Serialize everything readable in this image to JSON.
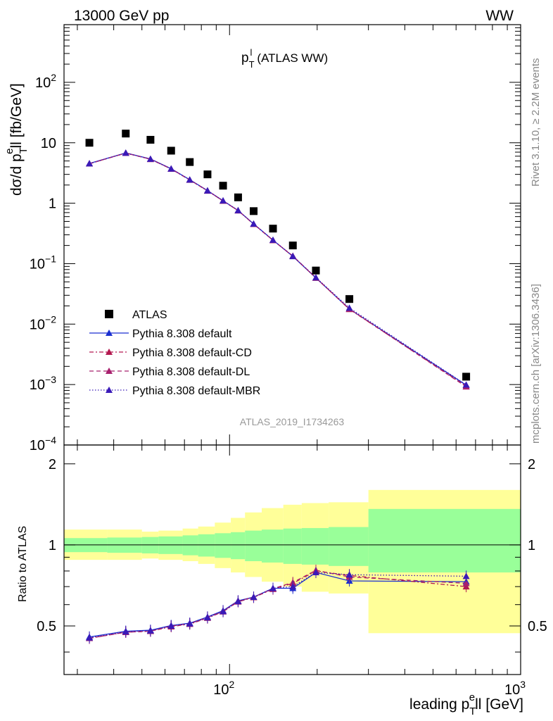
{
  "header": {
    "energy_label": "13000 GeV pp",
    "process_label": "WW"
  },
  "side_text": {
    "rivet": "Rivet 3.1.10, ≥ 2.2M events",
    "source": "mcplots.cern.ch [arXiv:1306.3436]"
  },
  "analysis_id": "ATLAS_2019_I1734263",
  "colors": {
    "data": "#000000",
    "default": "#1a2fd0",
    "cd": "#b3184f",
    "dl": "#a8206e",
    "mbr": "#3a1ab8",
    "band_inner": "#99ff99",
    "band_outer": "#ffff99"
  },
  "chart_data": [
    {
      "type": "line",
      "title": "p_T^l (ATLAS WW)",
      "title_parts": {
        "main": "p",
        "sup": "l",
        "sub": "T",
        "suffix": "(ATLAS WW)"
      },
      "xscale": "log",
      "yscale": "log",
      "xlim": [
        27,
        1000
      ],
      "ylim": [
        0.0001,
        900
      ],
      "ylabel": "dσ/d p_T^e ll [fb/GeV]",
      "ylabel_parts": {
        "pre": "dσ/d p",
        "sub": "T",
        "sup": "e",
        "post": "ll [fb/GeV]"
      },
      "y_tick_labels": [
        "10^-4",
        "10^-3",
        "10^-2",
        "10^-1",
        "1",
        "10",
        "10^2"
      ],
      "y_tick_parts": [
        {
          "v": 0.0001,
          "base": "10",
          "exp": "−4"
        },
        {
          "v": 0.001,
          "base": "10",
          "exp": "−3"
        },
        {
          "v": 0.01,
          "base": "10",
          "exp": "−2"
        },
        {
          "v": 0.1,
          "base": "10",
          "exp": "−1"
        },
        {
          "v": 1,
          "base": "1",
          "exp": ""
        },
        {
          "v": 10,
          "base": "10",
          "exp": ""
        },
        {
          "v": 100,
          "base": "10",
          "exp": "2"
        }
      ],
      "x": [
        33,
        44,
        53.5,
        63,
        73,
        84,
        95,
        107,
        121,
        141,
        165,
        198,
        258,
        650
      ],
      "series": [
        {
          "name": "ATLAS",
          "style": "marker-square",
          "values": [
            10.0,
            14.2,
            11.2,
            7.4,
            4.8,
            3.0,
            1.95,
            1.25,
            0.74,
            0.38,
            0.2,
            0.077,
            0.026,
            0.00135
          ]
        },
        {
          "name": "Pythia 8.308 default",
          "style": "solid",
          "values": [
            4.55,
            6.8,
            5.4,
            3.72,
            2.45,
            1.62,
            1.1,
            0.76,
            0.455,
            0.245,
            0.132,
            0.058,
            0.0178,
            0.00098
          ]
        },
        {
          "name": "Pythia 8.308 default-CD",
          "style": "dashdot",
          "values": [
            4.5,
            6.75,
            5.35,
            3.68,
            2.42,
            1.6,
            1.09,
            0.755,
            0.45,
            0.243,
            0.133,
            0.058,
            0.0176,
            0.00094
          ]
        },
        {
          "name": "Pythia 8.308 default-DL",
          "style": "dashed",
          "values": [
            4.5,
            6.75,
            5.35,
            3.7,
            2.43,
            1.61,
            1.09,
            0.755,
            0.452,
            0.244,
            0.134,
            0.0585,
            0.0178,
            0.00092
          ]
        },
        {
          "name": "Pythia 8.308 default-MBR",
          "style": "dotted",
          "values": [
            4.52,
            6.78,
            5.38,
            3.71,
            2.44,
            1.61,
            1.1,
            0.76,
            0.455,
            0.246,
            0.133,
            0.059,
            0.0185,
            0.00099
          ]
        }
      ]
    },
    {
      "type": "line",
      "title": "",
      "xscale": "log",
      "xlim": [
        27,
        1000
      ],
      "ylim": [
        0.33,
        2.35
      ],
      "xlabel": "leading p_T^e ll [GeV]",
      "xlabel_parts": {
        "pre": "leading p",
        "sub": "T",
        "sup": "e",
        "post": "ll [GeV]"
      },
      "ylabel": "Ratio to ATLAS",
      "y_tick_labels": [
        "0.5",
        "1",
        "2"
      ],
      "y_ticks": [
        0.5,
        1,
        2
      ],
      "x_tick_labels": [
        "10^2",
        "10^3"
      ],
      "x_tick_parts": [
        {
          "v": 100,
          "base": "10",
          "exp": "2"
        },
        {
          "v": 1000,
          "base": "10",
          "exp": "3"
        }
      ],
      "x": [
        33,
        44,
        53.5,
        63,
        73,
        84,
        95,
        107,
        121,
        141,
        165,
        198,
        258,
        650
      ],
      "bands": {
        "edges": [
          27,
          38,
          50,
          57,
          69,
          78,
          89,
          101,
          113,
          129,
          153,
          177,
          219,
          300,
          1000
        ],
        "inner_lo": [
          0.94,
          0.935,
          0.93,
          0.925,
          0.915,
          0.905,
          0.895,
          0.885,
          0.87,
          0.86,
          0.85,
          0.845,
          0.835,
          0.79
        ],
        "inner_hi": [
          1.06,
          1.065,
          1.07,
          1.075,
          1.085,
          1.095,
          1.105,
          1.115,
          1.13,
          1.14,
          1.15,
          1.155,
          1.165,
          1.36
        ],
        "outer_lo": [
          0.88,
          0.88,
          0.89,
          0.88,
          0.87,
          0.85,
          0.82,
          0.79,
          0.76,
          0.73,
          0.7,
          0.67,
          0.66,
          0.47
        ],
        "outer_hi": [
          1.14,
          1.14,
          1.12,
          1.13,
          1.15,
          1.17,
          1.21,
          1.26,
          1.32,
          1.37,
          1.41,
          1.43,
          1.44,
          1.6
        ]
      },
      "series": [
        {
          "name": "Pythia 8.308 default",
          "values": [
            0.455,
            0.478,
            0.482,
            0.502,
            0.512,
            0.54,
            0.57,
            0.62,
            0.64,
            0.69,
            0.69,
            0.79,
            0.735,
            0.73
          ]
        },
        {
          "name": "Pythia 8.308 default-CD",
          "values": [
            0.45,
            0.474,
            0.478,
            0.497,
            0.508,
            0.535,
            0.565,
            0.615,
            0.638,
            0.685,
            0.72,
            0.8,
            0.77,
            0.7
          ]
        },
        {
          "name": "Pythia 8.308 default-DL",
          "values": [
            0.45,
            0.474,
            0.478,
            0.5,
            0.51,
            0.538,
            0.567,
            0.618,
            0.64,
            0.688,
            0.725,
            0.805,
            0.76,
            0.72
          ]
        },
        {
          "name": "Pythia 8.308 default-MBR",
          "values": [
            0.452,
            0.476,
            0.48,
            0.5,
            0.51,
            0.537,
            0.566,
            0.617,
            0.64,
            0.69,
            0.7,
            0.79,
            0.775,
            0.765
          ]
        }
      ]
    }
  ]
}
